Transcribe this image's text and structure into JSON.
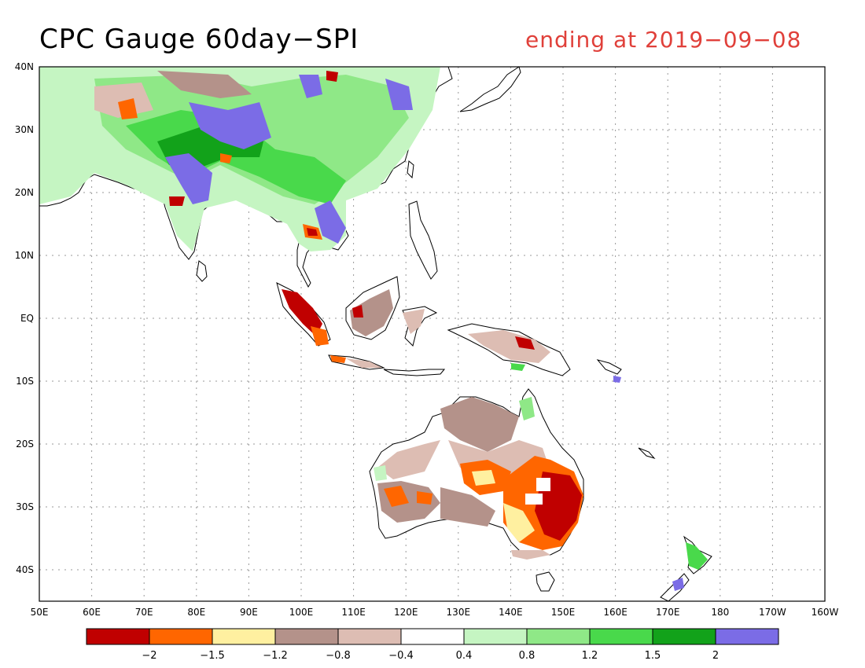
{
  "title": "CPC Gauge 60day−SPI",
  "subtitle": "ending at 2019−09−08",
  "colors": {
    "subtitle": "#e0403a",
    "coast": "#000000",
    "grid": "#9a9a9a"
  },
  "map": {
    "lon_range": [
      50,
      200
    ],
    "lat_range": [
      -45,
      40
    ],
    "lon_labels": [
      "50E",
      "60E",
      "70E",
      "80E",
      "90E",
      "100E",
      "110E",
      "120E",
      "130E",
      "140E",
      "150E",
      "160E",
      "170E",
      "180",
      "170W",
      "160W"
    ],
    "lat_labels": [
      "40N",
      "30N",
      "20N",
      "10N",
      "EQ",
      "10S",
      "20S",
      "30S",
      "40S"
    ]
  },
  "colorbar": {
    "colors": [
      "#c00000",
      "#ff6600",
      "#fff0a0",
      "#b4928a",
      "#ddbdb3",
      "#ffffff",
      "#c5f5c2",
      "#8fe887",
      "#49d94b",
      "#12a21a",
      "#7b6ce6"
    ],
    "labels": [
      "−2",
      "−1.5",
      "−1.2",
      "−0.8",
      "−0.4",
      "0.4",
      "0.8",
      "1.2",
      "1.5",
      "2"
    ]
  }
}
